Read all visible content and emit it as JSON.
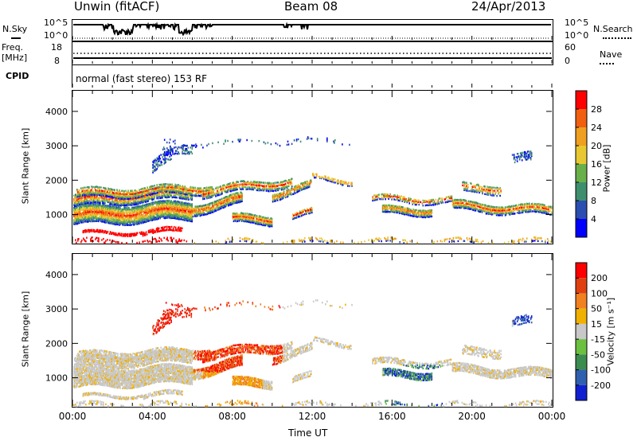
{
  "header": {
    "station": "Unwin (fitACF)",
    "beam": "Beam 08",
    "date": "24/Apr/2013"
  },
  "status_panels": {
    "nsky_label": "N.Sky",
    "nsky_ticks": [
      "10^5",
      "10^0"
    ],
    "nsearch_label": "N.Search",
    "nsearch_ticks": [
      "10^5",
      "10^0"
    ],
    "freq_label": "Freq.",
    "freq_unit": "[MHz]",
    "freq_ticks": [
      "18",
      "8"
    ],
    "nave_label": "Nave",
    "nave_ticks": [
      "60",
      "0"
    ],
    "cpid_label": "CPID",
    "cpid_text": "normal (fast stereo) 153 RF"
  },
  "chart_data": [
    {
      "type": "heatmap",
      "name": "power",
      "ylabel": "Slant Range [km]",
      "xlabel": "Time UT",
      "ylim": [
        180,
        4600
      ],
      "yticks": [
        1000,
        2000,
        3000,
        4000
      ],
      "xlim_hours": [
        0,
        24
      ],
      "colorbar_label": "Power [dB]",
      "colorbar_ticks": [
        "4",
        "8",
        "12",
        "16",
        "20",
        "24",
        "28"
      ],
      "colorbar_range": [
        0,
        30
      ],
      "colors": [
        "#0000ff",
        "#2a4fb0",
        "#3f8f6f",
        "#6ab04a",
        "#e8c832",
        "#f0a020",
        "#f06010",
        "#ff0000"
      ]
    },
    {
      "type": "heatmap",
      "name": "velocity",
      "ylabel": "Slant Range [km]",
      "xlabel": "Time UT",
      "ylim": [
        180,
        4600
      ],
      "yticks": [
        1000,
        2000,
        3000,
        4000
      ],
      "xlim_hours": [
        0,
        24
      ],
      "colorbar_label": "Velocity [m s⁻¹]",
      "colorbar_ticks": [
        "200",
        "100",
        "50",
        "15",
        "-15",
        "-50",
        "-100",
        "-200"
      ],
      "colors": [
        "#1020d0",
        "#2f60b0",
        "#3c8c50",
        "#6cc040",
        "#c8c8c8",
        "#f0b000",
        "#f08020",
        "#e04010",
        "#ff0000"
      ]
    }
  ],
  "x_axis": {
    "ticks": [
      "00:00",
      "04:00",
      "08:00",
      "12:00",
      "16:00",
      "20:00",
      "00:00"
    ],
    "label": "Time UT"
  }
}
